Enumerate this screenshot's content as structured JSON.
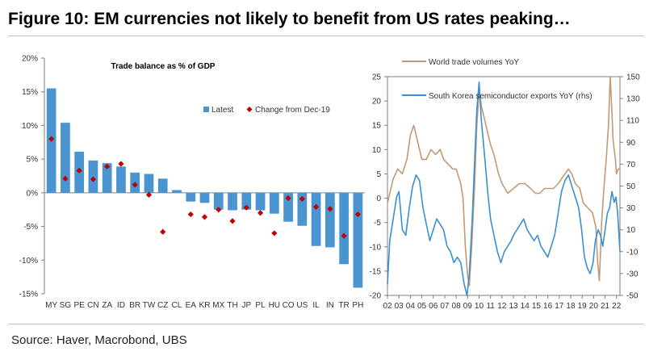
{
  "figure": {
    "title": "Figure 10: EM currencies not likely to benefit from US rates peaking…",
    "source": "Source: Haver, Macrobond, UBS"
  },
  "chart_data": [
    {
      "type": "bar",
      "title": "Trade balance as % of GDP",
      "categories": [
        "MY",
        "SG",
        "PE",
        "CN",
        "ZA",
        "ID",
        "BR",
        "TW",
        "CZ",
        "CL",
        "EA",
        "KR",
        "MX",
        "TH",
        "JP",
        "PL",
        "HU",
        "CO",
        "US",
        "IL",
        "IN",
        "TR",
        "PH"
      ],
      "series": [
        {
          "name": "Latest",
          "type": "bar",
          "color": "#4a95cf",
          "values": [
            15.5,
            10.4,
            6.1,
            4.8,
            4.4,
            3.9,
            3.0,
            2.8,
            2.1,
            0.4,
            -1.3,
            -1.5,
            -2.5,
            -2.6,
            -2.5,
            -2.6,
            -3.1,
            -4.3,
            -4.9,
            -7.9,
            -8.1,
            -10.6,
            -14.1
          ]
        },
        {
          "name": "Change from Dec-19",
          "type": "marker",
          "color": "#c00000",
          "values": [
            8.0,
            2.1,
            3.3,
            2.0,
            3.9,
            4.3,
            1.2,
            -0.3,
            -5.8,
            null,
            -3.2,
            -3.6,
            -2.5,
            -4.2,
            -2.2,
            -3.0,
            -6.0,
            -0.8,
            -0.9,
            -2.1,
            -2.4,
            -6.4,
            -3.2
          ]
        }
      ],
      "yticks": [
        "20%",
        "15%",
        "10%",
        "5%",
        "0%",
        "-5%",
        "-10%",
        "-15%"
      ],
      "ylim": [
        -15,
        20
      ],
      "legend_position": "top-right",
      "grid": false
    },
    {
      "type": "line",
      "x_tick_labels": [
        "02",
        "03",
        "04",
        "05",
        "06",
        "07",
        "08",
        "09",
        "10",
        "11",
        "12",
        "13",
        "14",
        "15",
        "16",
        "17",
        "18",
        "19",
        "20",
        "21",
        "22"
      ],
      "x_range": [
        2002,
        2022.3
      ],
      "y_left": {
        "ticks": [
          "25",
          "20",
          "15",
          "10",
          "5",
          "0",
          "-5",
          "-10",
          "-15",
          "-20"
        ],
        "range": [
          -20,
          25
        ]
      },
      "y_right": {
        "ticks": [
          "150",
          "130",
          "110",
          "90",
          "70",
          "50",
          "30",
          "10",
          "-10",
          "-30",
          "-50"
        ],
        "range": [
          -50,
          150
        ]
      },
      "grid": false,
      "series": [
        {
          "name": "World trade volumes YoY",
          "axis": "left",
          "color": "#c19a75",
          "points": [
            [
              2002.0,
              -1
            ],
            [
              2002.5,
              4
            ],
            [
              2002.9,
              6
            ],
            [
              2003.3,
              5
            ],
            [
              2003.7,
              8
            ],
            [
              2004.0,
              13
            ],
            [
              2004.3,
              15
            ],
            [
              2004.7,
              11
            ],
            [
              2005.0,
              8
            ],
            [
              2005.4,
              8
            ],
            [
              2005.8,
              10
            ],
            [
              2006.2,
              9
            ],
            [
              2006.6,
              10
            ],
            [
              2006.9,
              8
            ],
            [
              2007.3,
              7
            ],
            [
              2007.7,
              6
            ],
            [
              2008.0,
              6
            ],
            [
              2008.4,
              3
            ],
            [
              2008.6,
              0
            ],
            [
              2008.8,
              -10
            ],
            [
              2009.0,
              -16
            ],
            [
              2009.15,
              -18
            ],
            [
              2009.35,
              -10
            ],
            [
              2009.6,
              2
            ],
            [
              2009.8,
              15
            ],
            [
              2010.0,
              22
            ],
            [
              2010.2,
              19
            ],
            [
              2010.5,
              16
            ],
            [
              2010.8,
              13
            ],
            [
              2011.0,
              11
            ],
            [
              2011.3,
              9
            ],
            [
              2011.7,
              5
            ],
            [
              2012.0,
              3
            ],
            [
              2012.5,
              1
            ],
            [
              2013.0,
              2
            ],
            [
              2013.5,
              3
            ],
            [
              2014.0,
              3
            ],
            [
              2014.5,
              2
            ],
            [
              2014.9,
              1
            ],
            [
              2015.3,
              1
            ],
            [
              2015.7,
              2
            ],
            [
              2016.0,
              2
            ],
            [
              2016.5,
              2
            ],
            [
              2016.9,
              3
            ],
            [
              2017.2,
              4
            ],
            [
              2017.5,
              5
            ],
            [
              2017.8,
              6
            ],
            [
              2018.1,
              5
            ],
            [
              2018.4,
              3
            ],
            [
              2018.8,
              2
            ],
            [
              2019.1,
              -1
            ],
            [
              2019.5,
              -2
            ],
            [
              2019.9,
              -3
            ],
            [
              2020.2,
              -6
            ],
            [
              2020.35,
              -13
            ],
            [
              2020.5,
              -17
            ],
            [
              2020.7,
              -5
            ],
            [
              2020.9,
              2
            ],
            [
              2021.1,
              8
            ],
            [
              2021.3,
              15
            ],
            [
              2021.45,
              25
            ],
            [
              2021.55,
              20
            ],
            [
              2021.7,
              12
            ],
            [
              2021.9,
              8
            ],
            [
              2022.0,
              5
            ],
            [
              2022.15,
              6
            ],
            [
              2022.3,
              6
            ]
          ]
        },
        {
          "name": "South Korea semiconductor exports YoY (rhs)",
          "axis": "right",
          "color": "#3b8ed0",
          "points": [
            [
              2002.0,
              -40
            ],
            [
              2002.2,
              0
            ],
            [
              2002.5,
              20
            ],
            [
              2002.8,
              40
            ],
            [
              2003.0,
              45
            ],
            [
              2003.3,
              10
            ],
            [
              2003.6,
              5
            ],
            [
              2003.9,
              30
            ],
            [
              2004.2,
              50
            ],
            [
              2004.5,
              60
            ],
            [
              2004.8,
              55
            ],
            [
              2005.1,
              30
            ],
            [
              2005.4,
              15
            ],
            [
              2005.7,
              0
            ],
            [
              2006.0,
              10
            ],
            [
              2006.3,
              20
            ],
            [
              2006.6,
              15
            ],
            [
              2006.9,
              10
            ],
            [
              2007.2,
              -5
            ],
            [
              2007.5,
              -10
            ],
            [
              2007.8,
              -20
            ],
            [
              2008.1,
              -15
            ],
            [
              2008.4,
              -20
            ],
            [
              2008.7,
              -40
            ],
            [
              2008.95,
              -50
            ],
            [
              2009.15,
              -30
            ],
            [
              2009.4,
              20
            ],
            [
              2009.6,
              70
            ],
            [
              2009.8,
              120
            ],
            [
              2010.0,
              145
            ],
            [
              2010.2,
              110
            ],
            [
              2010.5,
              75
            ],
            [
              2010.8,
              40
            ],
            [
              2011.0,
              20
            ],
            [
              2011.3,
              5
            ],
            [
              2011.6,
              -10
            ],
            [
              2011.9,
              -20
            ],
            [
              2012.2,
              -10
            ],
            [
              2012.5,
              -5
            ],
            [
              2012.8,
              0
            ],
            [
              2013.0,
              5
            ],
            [
              2013.3,
              10
            ],
            [
              2013.6,
              15
            ],
            [
              2013.9,
              20
            ],
            [
              2014.2,
              10
            ],
            [
              2014.5,
              5
            ],
            [
              2014.8,
              0
            ],
            [
              2015.1,
              5
            ],
            [
              2015.4,
              -5
            ],
            [
              2015.7,
              -10
            ],
            [
              2016.0,
              -15
            ],
            [
              2016.3,
              -5
            ],
            [
              2016.6,
              5
            ],
            [
              2016.9,
              25
            ],
            [
              2017.2,
              45
            ],
            [
              2017.5,
              55
            ],
            [
              2017.8,
              60
            ],
            [
              2018.1,
              50
            ],
            [
              2018.4,
              40
            ],
            [
              2018.7,
              30
            ],
            [
              2018.95,
              10
            ],
            [
              2019.2,
              -15
            ],
            [
              2019.45,
              -25
            ],
            [
              2019.7,
              -30
            ],
            [
              2019.95,
              -20
            ],
            [
              2020.15,
              0
            ],
            [
              2020.4,
              10
            ],
            [
              2020.6,
              5
            ],
            [
              2020.8,
              -5
            ],
            [
              2021.0,
              10
            ],
            [
              2021.2,
              25
            ],
            [
              2021.4,
              30
            ],
            [
              2021.6,
              45
            ],
            [
              2021.8,
              35
            ],
            [
              2021.95,
              40
            ],
            [
              2022.1,
              25
            ],
            [
              2022.3,
              -10
            ]
          ]
        }
      ]
    }
  ]
}
